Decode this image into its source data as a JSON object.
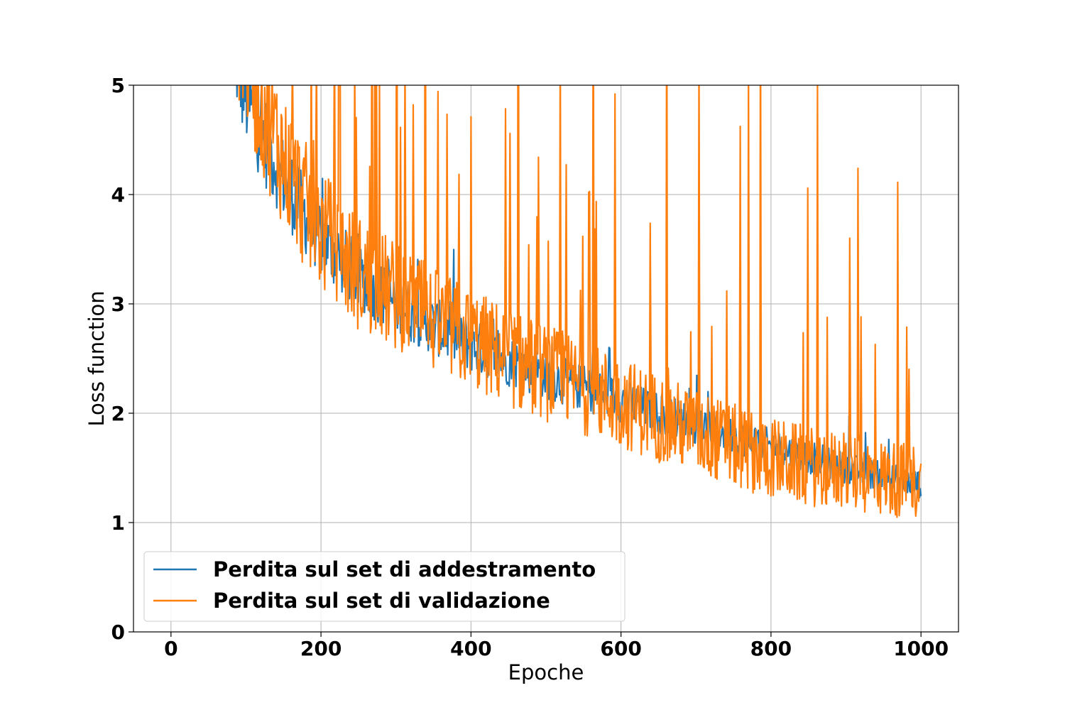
{
  "chart_data": {
    "type": "line",
    "title": "",
    "xlabel": "Epoche",
    "ylabel": "Loss function",
    "xlim": [
      -50,
      1050
    ],
    "ylim": [
      0,
      5
    ],
    "xticks": [
      0,
      200,
      400,
      600,
      800,
      1000
    ],
    "yticks": [
      0,
      1,
      2,
      3,
      4,
      5
    ],
    "grid": true,
    "legend_position": "lower-left",
    "series": [
      {
        "name": "Perdita sul set di addestramento",
        "color": "#1f77b4",
        "x": [
          85,
          100,
          125,
          150,
          175,
          200,
          250,
          300,
          350,
          400,
          450,
          500,
          550,
          600,
          650,
          700,
          750,
          800,
          850,
          900,
          950,
          1000
        ],
        "y": [
          5.3,
          4.9,
          4.5,
          4.15,
          3.85,
          3.6,
          3.25,
          3.0,
          2.8,
          2.62,
          2.48,
          2.35,
          2.23,
          2.12,
          2.0,
          1.9,
          1.8,
          1.7,
          1.6,
          1.5,
          1.42,
          1.35
        ]
      },
      {
        "name": "Perdita sul set di validazione",
        "color": "#ff7f0e",
        "x": [
          85,
          100,
          125,
          150,
          175,
          200,
          250,
          300,
          350,
          400,
          450,
          500,
          550,
          600,
          650,
          700,
          750,
          800,
          850,
          900,
          950,
          1000
        ],
        "y": [
          5.2,
          4.8,
          4.3,
          3.9,
          3.55,
          3.3,
          2.95,
          2.75,
          2.55,
          2.4,
          2.25,
          2.12,
          2.0,
          1.88,
          1.75,
          1.63,
          1.52,
          1.42,
          1.35,
          1.3,
          1.25,
          1.22
        ]
      }
    ]
  }
}
